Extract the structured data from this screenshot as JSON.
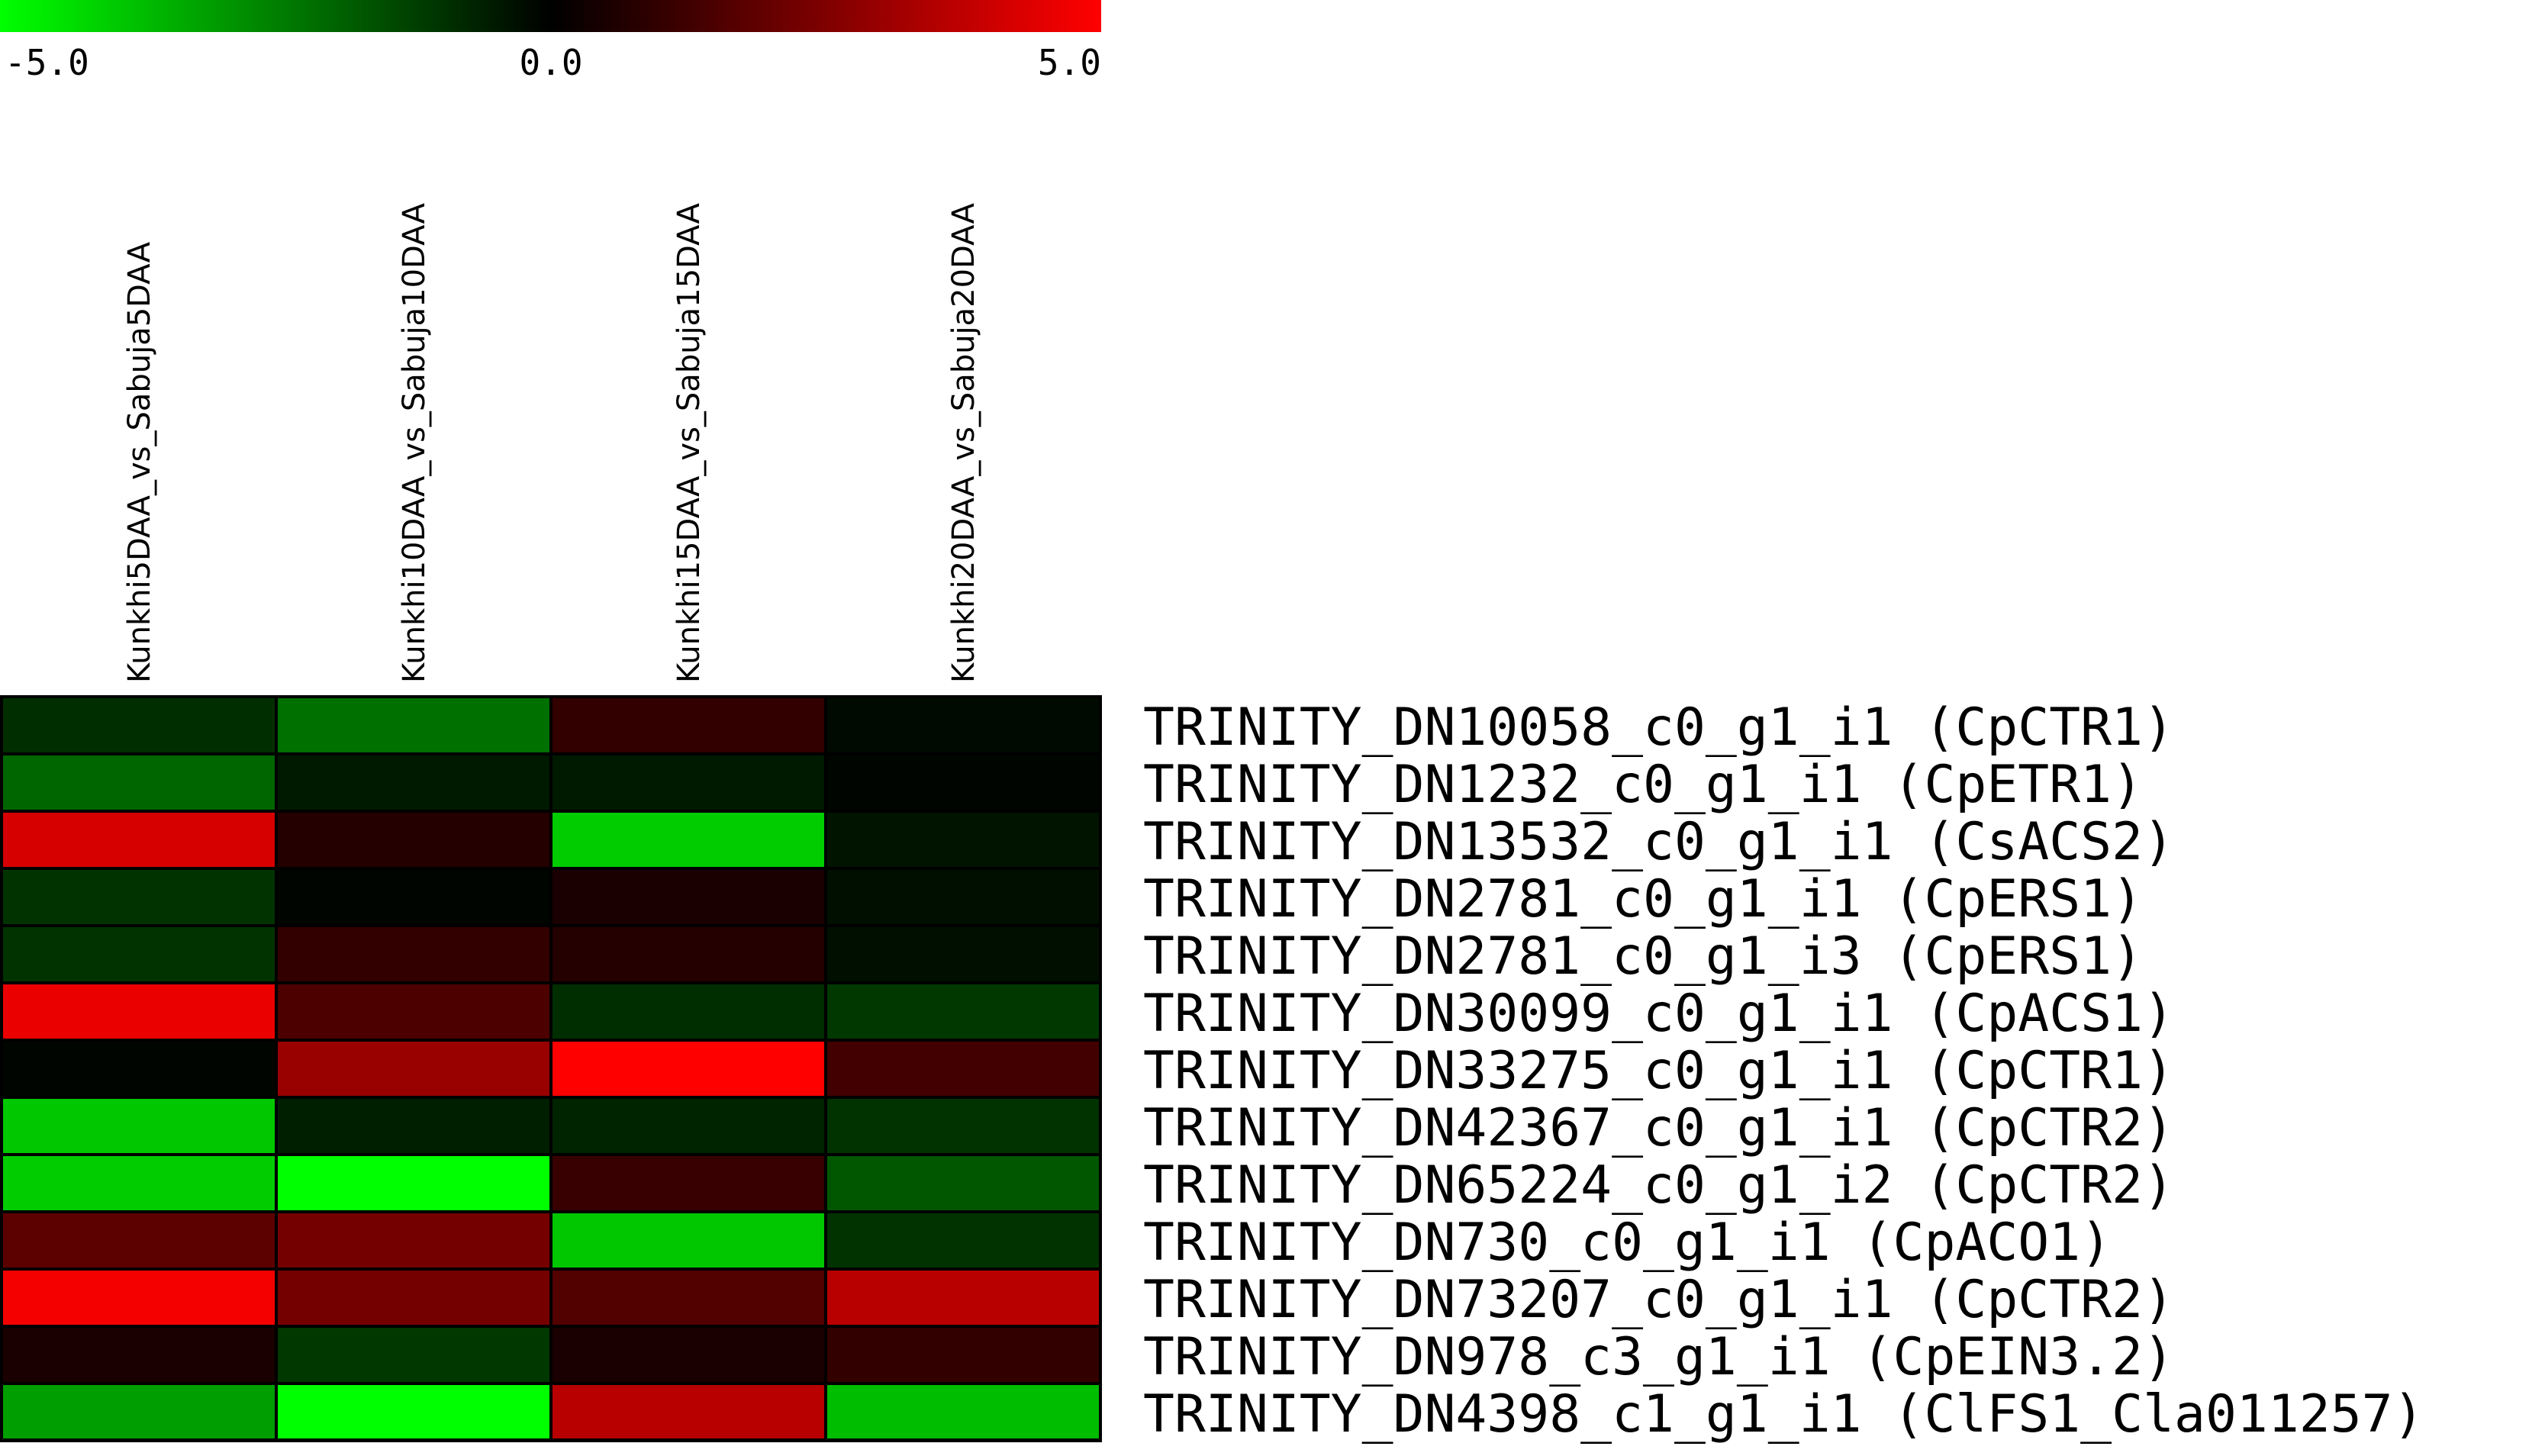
{
  "chart_data": {
    "type": "heatmap",
    "color_scale": {
      "min": -5.0,
      "mid": 0.0,
      "max": 5.0,
      "tick_labels": [
        "-5.0",
        "0.0",
        "5.0"
      ],
      "low_color": "#00ff00",
      "mid_color": "#000000",
      "high_color": "#ff0000"
    },
    "columns": [
      "Kunkhi5DAA_vs_Sabuja5DAA",
      "Kunkhi10DAA_vs_Sabuja10DAA",
      "Kunkhi15DAA_vs_Sabuja15DAA",
      "Kunkhi20DAA_vs_Sabuja20DAA"
    ],
    "rows": [
      "TRINITY_DN10058_c0_g1_i1 (CpCTR1)",
      "TRINITY_DN1232_c0_g1_i1 (CpETR1)",
      "TRINITY_DN13532_c0_g1_i1 (CsACS2)",
      "TRINITY_DN2781_c0_g1_i1 (CpERS1)",
      "TRINITY_DN2781_c0_g1_i3 (CpERS1)",
      "TRINITY_DN30099_c0_g1_i1 (CpACS1)",
      "TRINITY_DN33275_c0_g1_i1 (CpCTR1)",
      "TRINITY_DN42367_c0_g1_i1 (CpCTR2)",
      "TRINITY_DN65224_c0_g1_i2 (CpCTR2)",
      "TRINITY_DN730_c0_g1_i1 (CpACO1)",
      "TRINITY_DN73207_c0_g1_i1 (CpCTR2)",
      "TRINITY_DN978_c3_g1_i1 (CpEIN3.2)",
      "TRINITY_DN4398_c1_g1_i1 (ClFS1_Cla011257)"
    ],
    "values": [
      [
        -0.9,
        -2.2,
        1.0,
        -0.2
      ],
      [
        -2.0,
        -0.5,
        -0.5,
        -0.1
      ],
      [
        4.2,
        0.7,
        -4.0,
        -0.4
      ],
      [
        -1.0,
        -0.1,
        0.5,
        -0.3
      ],
      [
        -1.0,
        1.0,
        0.7,
        -0.3
      ],
      [
        4.6,
        1.5,
        -0.9,
        -1.1
      ],
      [
        -0.1,
        3.0,
        5.0,
        1.3
      ],
      [
        -3.9,
        -0.6,
        -0.7,
        -1.0
      ],
      [
        -4.0,
        -5.0,
        1.1,
        -1.7
      ],
      [
        1.8,
        2.3,
        -3.9,
        -1.0
      ],
      [
        4.8,
        2.3,
        1.6,
        3.6
      ],
      [
        0.5,
        -1.1,
        0.5,
        1.0
      ],
      [
        -3.1,
        -5.0,
        3.6,
        -3.7
      ]
    ]
  }
}
